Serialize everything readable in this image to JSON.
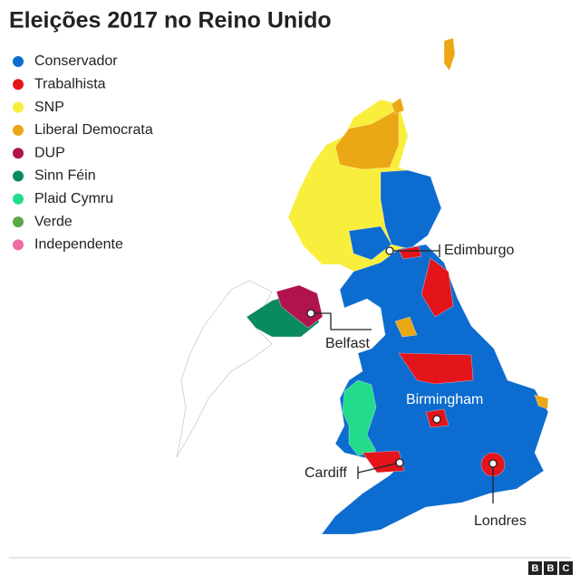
{
  "title": "Eleições 2017 no Reino Unido",
  "legend": [
    {
      "label": "Conservador",
      "color": "#0d6ccf"
    },
    {
      "label": "Trabalhista",
      "color": "#e4141b"
    },
    {
      "label": "SNP",
      "color": "#f9ee3c"
    },
    {
      "label": "Liberal Democrata",
      "color": "#eba714"
    },
    {
      "label": "DUP",
      "color": "#b0134e"
    },
    {
      "label": "Sinn Féin",
      "color": "#0a8a5f"
    },
    {
      "label": "Plaid Cymru",
      "color": "#22dc8c"
    },
    {
      "label": "Verde",
      "color": "#5aa84a"
    },
    {
      "label": "Independente",
      "color": "#f06ca5"
    }
  ],
  "cities": [
    {
      "label": "Edimburgo"
    },
    {
      "label": "Belfast"
    },
    {
      "label": "Birmingham"
    },
    {
      "label": "Cardiff"
    },
    {
      "label": "Londres"
    }
  ],
  "footer": {
    "logo": [
      "B",
      "B",
      "C"
    ]
  }
}
